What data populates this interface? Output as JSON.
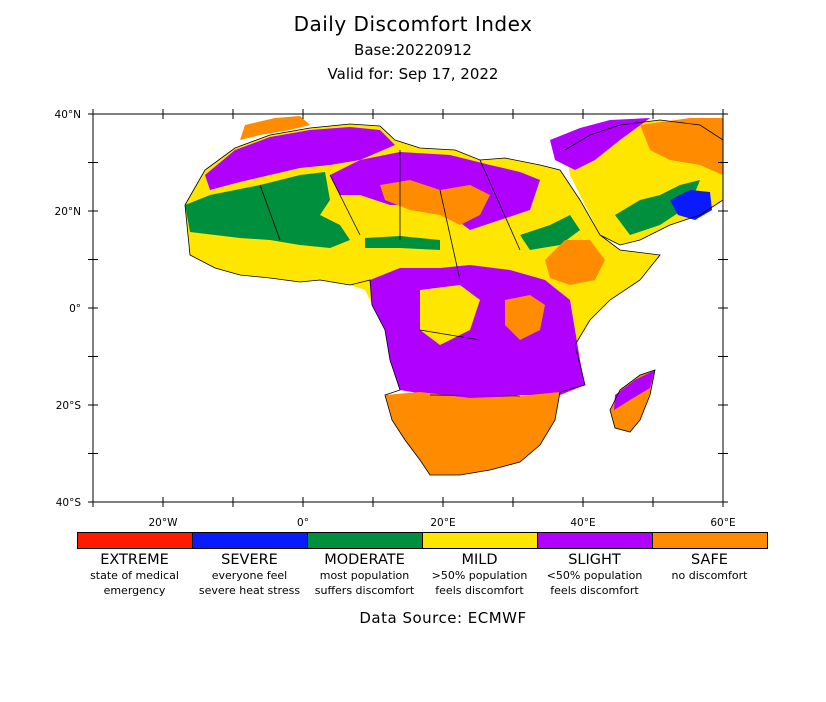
{
  "title": "Daily Discomfort Index",
  "base": "Base:20220912",
  "valid": "Valid for: Sep 17, 2022",
  "source": "Data Source: ECMWF",
  "map": {
    "lat_range": [
      -40,
      40
    ],
    "lon_range": [
      -30,
      60
    ],
    "lat_ticks": [
      "40°N",
      "20°N",
      "0°",
      "20°S",
      "40°S"
    ],
    "lon_ticks": [
      "20°W",
      "0°",
      "20°E",
      "40°E",
      "60°E"
    ]
  },
  "legend": [
    {
      "name": "EXTREME",
      "desc1": "state of medical",
      "desc2": "emergency",
      "color": "#ff1a00"
    },
    {
      "name": "SEVERE",
      "desc1": "everyone feel",
      "desc2": "severe heat stress",
      "color": "#0a1aff"
    },
    {
      "name": "MODERATE",
      "desc1": "most population",
      "desc2": "suffers discomfort",
      "color": "#008f3c"
    },
    {
      "name": "MILD",
      "desc1": ">50% population",
      "desc2": "feels discomfort",
      "color": "#ffe600"
    },
    {
      "name": "SLIGHT",
      "desc1": "<50% population",
      "desc2": "feels discomfort",
      "color": "#b000ff"
    },
    {
      "name": "SAFE",
      "desc1": "no discomfort",
      "desc2": "",
      "color": "#ff8c00"
    }
  ]
}
